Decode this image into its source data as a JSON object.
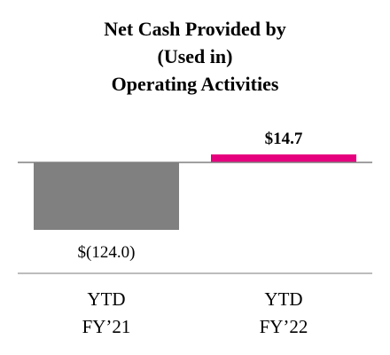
{
  "chart_data": {
    "type": "bar",
    "title_lines": [
      "Net Cash Provided by",
      "(Used in)",
      "Operating Activities"
    ],
    "categories": [
      {
        "line1": "YTD",
        "line2": "FY’21"
      },
      {
        "line1": "YTD",
        "line2": "FY’22"
      }
    ],
    "values": [
      -124.0,
      14.7
    ],
    "data_labels": [
      "$(124.0)",
      "$14.7"
    ],
    "bar_colors": [
      "#808080",
      "#E6007E"
    ],
    "ylim": [
      -124.0,
      14.7
    ],
    "zero_line_color": "#808080",
    "axis_line_color": "#A6A6A6",
    "grid": false,
    "legend": "none"
  }
}
